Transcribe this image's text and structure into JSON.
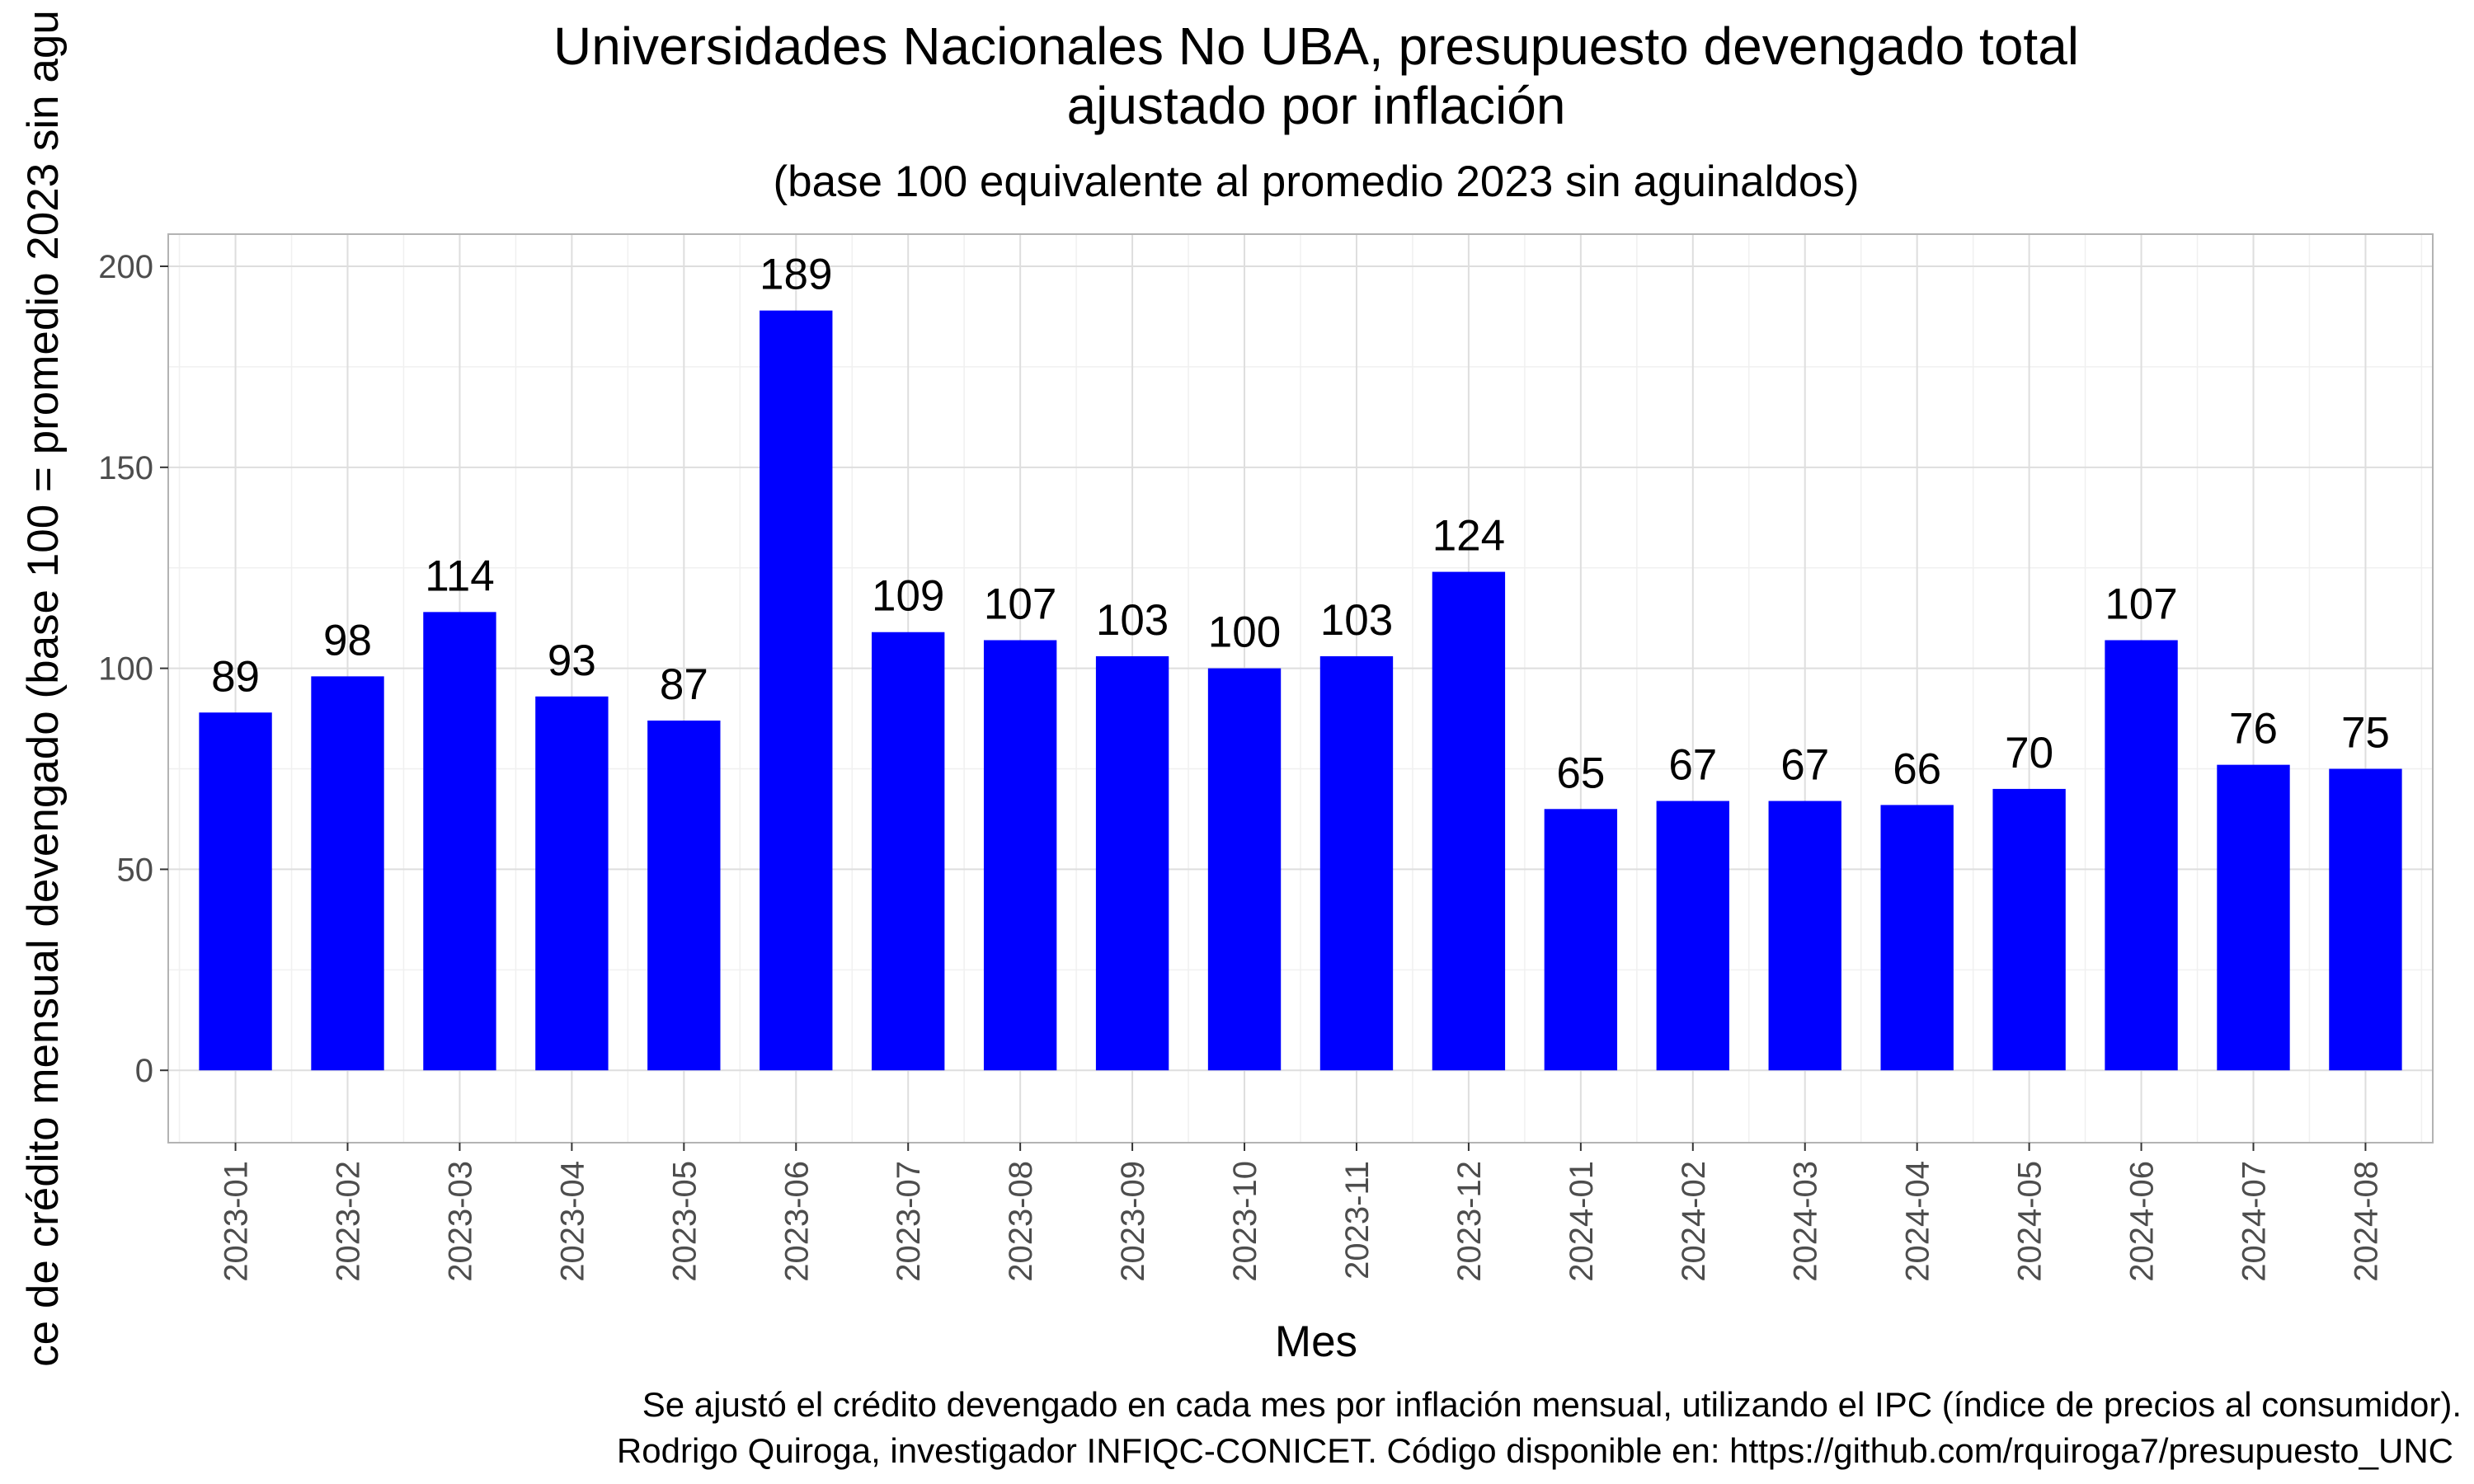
{
  "chart_data": {
    "type": "bar",
    "title": [
      "Universidades Nacionales No UBA, presupuesto devengado total",
      "ajustado por inflación"
    ],
    "subtitle": "(base 100 equivalente al promedio 2023 sin aguinaldos)",
    "xlabel": "Mes",
    "ylabel": "ce de crédito mensual devengado (base 100 = promedio 2023 sin agu",
    "caption": [
      "Se ajustó el crédito devengado en cada mes por inflación mensual, utilizando el IPC (índice de precios al consumidor).",
      "Rodrigo Quiroga, investigador INFIQC-CONICET. Código disponible en: https://github.com/rquiroga7/presupuesto_UNC"
    ],
    "categories": [
      "2023-01",
      "2023-02",
      "2023-03",
      "2023-04",
      "2023-05",
      "2023-06",
      "2023-07",
      "2023-08",
      "2023-09",
      "2023-10",
      "2023-11",
      "2023-12",
      "2024-01",
      "2024-02",
      "2024-03",
      "2024-04",
      "2024-05",
      "2024-06",
      "2024-07",
      "2024-08"
    ],
    "values": [
      89,
      98,
      114,
      93,
      87,
      189,
      109,
      107,
      103,
      100,
      103,
      124,
      65,
      67,
      67,
      66,
      70,
      107,
      76,
      75
    ],
    "labels": [
      "89",
      "98",
      "114",
      "93",
      "87",
      "189",
      "109",
      "107",
      "103",
      "100",
      "103",
      "124",
      "65",
      "67",
      "67",
      "66",
      "70",
      "107",
      "76",
      "75"
    ],
    "ylim": [
      -18,
      208
    ],
    "yticks": [
      0,
      50,
      100,
      150,
      200
    ],
    "ytick_labels": [
      "0",
      "50",
      "100",
      "150",
      "200"
    ],
    "bar_color": "#0000ff",
    "grid": true
  }
}
